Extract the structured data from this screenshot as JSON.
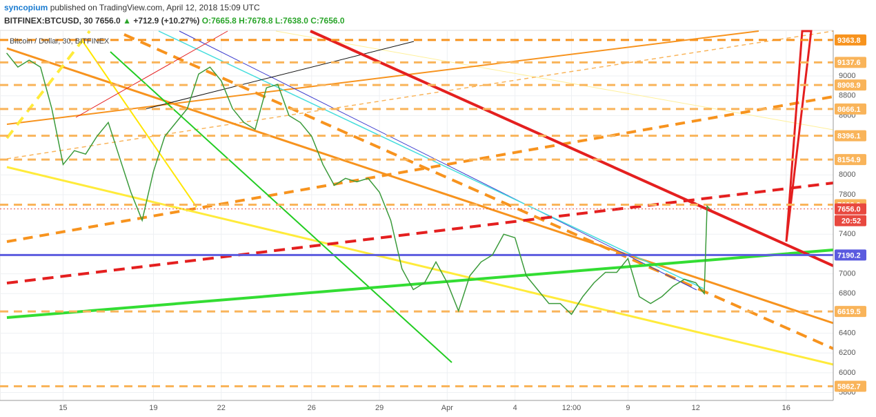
{
  "header": {
    "author": "syncopium",
    "published": "published on TradingView.com, April 12, 2018 15:09 UTC",
    "symbol": "BITFINEX:BTCUSD, 30",
    "last": "7656.0",
    "arrow": "▲",
    "change": "+712.9 (+10.27%)",
    "open": "O:7665.8",
    "high": "H:7678.8",
    "low": "L:7638.0",
    "close": "C:7656.0"
  },
  "chart_data": {
    "type": "line",
    "title": "Bitcoin / Dollar, 30, BITFINEX",
    "countdown": "20:52",
    "xlim": [
      "2018-03-12T05:00",
      "2018-04-18T02:00"
    ],
    "xticks": [
      {
        "value": "2018-03-15",
        "label": "15"
      },
      {
        "value": "2018-03-19",
        "label": "19"
      },
      {
        "value": "2018-03-22",
        "label": "22"
      },
      {
        "value": "2018-03-26",
        "label": "26"
      },
      {
        "value": "2018-03-29",
        "label": "29"
      },
      {
        "value": "2018-04-01",
        "label": "Apr"
      },
      {
        "value": "2018-04-04",
        "label": "4"
      },
      {
        "value": "2018-04-06T12:00",
        "label": "12:00"
      },
      {
        "value": "2018-04-09",
        "label": "9"
      },
      {
        "value": "2018-04-12",
        "label": "12"
      },
      {
        "value": "2018-04-16",
        "label": "16"
      }
    ],
    "ylim": [
      5720,
      9461
    ],
    "yticks": [
      5800,
      6000,
      6200,
      6400,
      6800,
      7000,
      7400,
      7800,
      8000,
      8600,
      8800,
      9000
    ],
    "grid": true,
    "x": [
      "2018-03-12T12:00",
      "2018-03-13T00:00",
      "2018-03-13T12:00",
      "2018-03-14T00:00",
      "2018-03-14T12:00",
      "2018-03-15T00:00",
      "2018-03-15T12:00",
      "2018-03-16T00:00",
      "2018-03-16T12:00",
      "2018-03-17T00:00",
      "2018-03-17T12:00",
      "2018-03-18T00:00",
      "2018-03-18T12:00",
      "2018-03-19T00:00",
      "2018-03-19T12:00",
      "2018-03-20T00:00",
      "2018-03-20T12:00",
      "2018-03-21T00:00",
      "2018-03-21T12:00",
      "2018-03-22T00:00",
      "2018-03-22T12:00",
      "2018-03-23T00:00",
      "2018-03-23T12:00",
      "2018-03-24T00:00",
      "2018-03-24T12:00",
      "2018-03-25T00:00",
      "2018-03-25T12:00",
      "2018-03-26T00:00",
      "2018-03-26T12:00",
      "2018-03-27T00:00",
      "2018-03-27T12:00",
      "2018-03-28T00:00",
      "2018-03-28T12:00",
      "2018-03-29T00:00",
      "2018-03-29T12:00",
      "2018-03-30T00:00",
      "2018-03-30T12:00",
      "2018-03-31T00:00",
      "2018-03-31T12:00",
      "2018-04-01T00:00",
      "2018-04-01T12:00",
      "2018-04-02T00:00",
      "2018-04-02T12:00",
      "2018-04-03T00:00",
      "2018-04-03T12:00",
      "2018-04-04T00:00",
      "2018-04-04T12:00",
      "2018-04-05T00:00",
      "2018-04-05T12:00",
      "2018-04-06T00:00",
      "2018-04-06T12:00",
      "2018-04-07T00:00",
      "2018-04-07T12:00",
      "2018-04-08T00:00",
      "2018-04-08T12:00",
      "2018-04-09T00:00",
      "2018-04-09T12:00",
      "2018-04-10T00:00",
      "2018-04-10T12:00",
      "2018-04-11T00:00",
      "2018-04-11T12:00",
      "2018-04-12T00:00",
      "2018-04-12T09:00",
      "2018-04-12T12:00",
      "2018-04-12T15:00"
    ],
    "series": [
      {
        "name": "BTCUSD",
        "color": "#3a9a3a",
        "values": [
          9232,
          9090,
          9160,
          9090,
          8670,
          8105,
          8245,
          8210,
          8390,
          8530,
          8175,
          7825,
          7540,
          8035,
          8390,
          8530,
          8670,
          9020,
          9090,
          8950,
          8670,
          8530,
          8460,
          8880,
          8915,
          8600,
          8530,
          8390,
          8105,
          7895,
          7965,
          7930,
          7965,
          7825,
          7540,
          7050,
          6840,
          6910,
          7120,
          6910,
          6625,
          6980,
          7120,
          7190,
          7400,
          7365,
          6980,
          6840,
          6700,
          6700,
          6590,
          6770,
          6910,
          7015,
          7015,
          7155,
          6770,
          6700,
          6770,
          6875,
          6945,
          6910,
          6800,
          7685,
          7656
        ]
      }
    ],
    "levels": [
      {
        "value": 9363.8,
        "color": "#f7931e"
      },
      {
        "value": 9137.6,
        "color": "#f9b45a"
      },
      {
        "value": 8908.9,
        "color": "#f9b45a"
      },
      {
        "value": 8666.1,
        "color": "#f9b45a"
      },
      {
        "value": 8396.1,
        "color": "#f9b45a"
      },
      {
        "value": 8154.9,
        "color": "#f9b45a"
      },
      {
        "value": 7698.9,
        "color": "#f9b45a"
      },
      {
        "value": {
          "value": 7656,
          "label": "7656.0"
        },
        "color": "#e8483f"
      },
      {
        "value": 7190.2,
        "color": "#5b5bdf"
      },
      {
        "value": 6619.5,
        "color": "#f9b45a"
      },
      {
        "value": 5862.7,
        "color": "#f9b45a"
      }
    ]
  }
}
